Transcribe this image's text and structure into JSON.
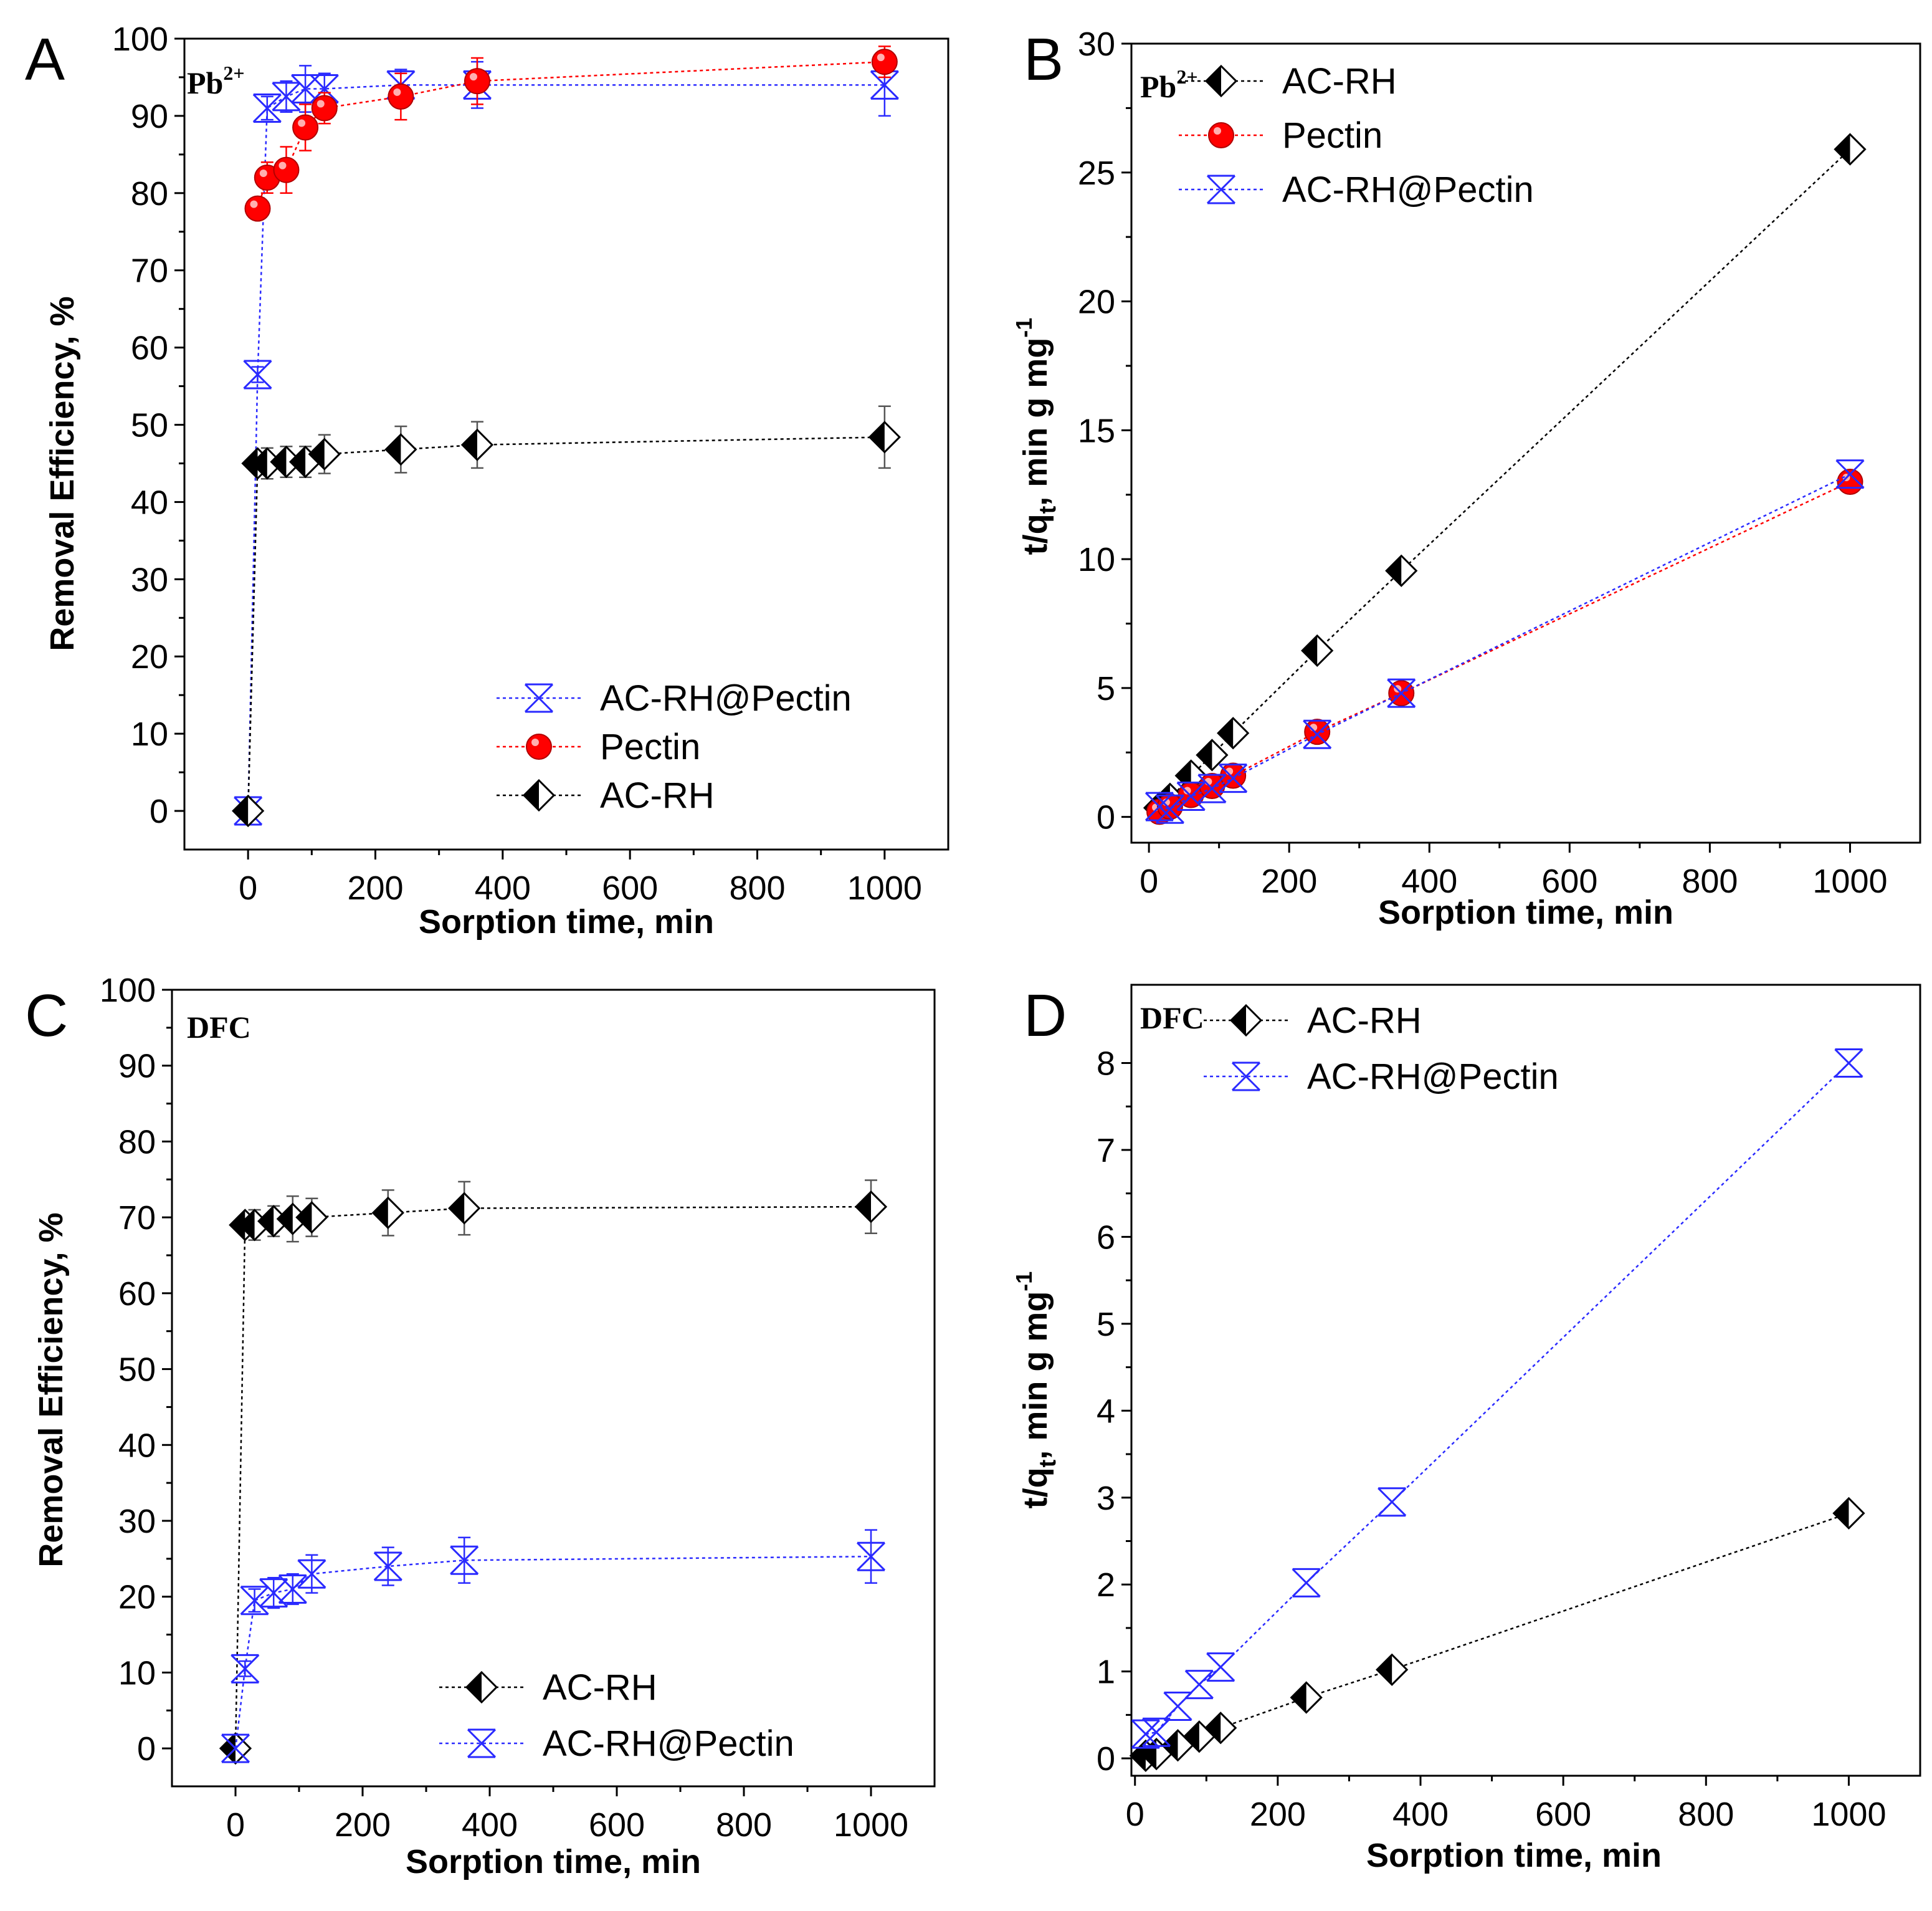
{
  "colors": {
    "AC-RH": "#000000",
    "Pectin": "#ff0000",
    "AC-RH@Pectin": "#2a2aff"
  },
  "chart_data": [
    {
      "id": "A",
      "letter": "A",
      "type": "line",
      "tag": "Pb",
      "tag_sup": "2+",
      "xlabel": "Sorption time, min",
      "ylabel": "Removal Efficiency, %",
      "xlim": [
        -100,
        1100
      ],
      "ylim": [
        -5,
        100
      ],
      "xticks": [
        0,
        200,
        400,
        600,
        800,
        1000
      ],
      "yticks": [
        0,
        10,
        20,
        30,
        40,
        50,
        60,
        70,
        80,
        90,
        100
      ],
      "legend_position": "bottom-right",
      "series": [
        {
          "name": "AC-RH@Pectin",
          "marker": "x-diamond",
          "color": "#2a2aff",
          "x": [
            0,
            15,
            30,
            60,
            90,
            120,
            240,
            360,
            1000
          ],
          "y": [
            0,
            56.5,
            91,
            92.5,
            93.5,
            93.5,
            94,
            94,
            94
          ],
          "err": [
            0,
            1,
            1.5,
            2,
            3,
            2,
            2,
            3,
            4
          ]
        },
        {
          "name": "Pectin",
          "marker": "circle",
          "color": "#ff0000",
          "x": [
            15,
            30,
            60,
            90,
            120,
            240,
            360,
            1000
          ],
          "y": [
            78,
            82,
            83,
            88.5,
            91,
            92.5,
            94.5,
            97
          ],
          "err": [
            1,
            2,
            3,
            3,
            2,
            3,
            3,
            2
          ]
        },
        {
          "name": "AC-RH",
          "marker": "half-diamond",
          "color": "#000000",
          "x": [
            0,
            15,
            30,
            60,
            90,
            120,
            240,
            360,
            1000
          ],
          "y": [
            0,
            45,
            45,
            45.2,
            45.2,
            46.2,
            46.8,
            47.4,
            48.4
          ],
          "err": [
            0,
            1,
            2,
            2,
            2,
            2.5,
            3,
            3,
            4
          ]
        }
      ]
    },
    {
      "id": "B",
      "letter": "B",
      "type": "line",
      "tag": "Pb",
      "tag_sup": "2+",
      "xlabel": "Sorption time, min",
      "ylabel": "t/q",
      "ylabel_sub": "t",
      "ylabel_rest": ", min g mg",
      "ylabel_sup": "-1",
      "xlim": [
        -25,
        1100
      ],
      "ylim": [
        -1,
        30
      ],
      "xticks": [
        0,
        200,
        400,
        600,
        800,
        1000
      ],
      "yticks": [
        0,
        5,
        10,
        15,
        20,
        25,
        30
      ],
      "legend_position": "top-left",
      "series": [
        {
          "name": "AC-RH",
          "marker": "half-diamond",
          "color": "#000000",
          "x": [
            15,
            30,
            60,
            90,
            120,
            240,
            360,
            1000
          ],
          "y": [
            0.35,
            0.7,
            1.6,
            2.4,
            3.25,
            6.45,
            9.55,
            25.9
          ]
        },
        {
          "name": "Pectin",
          "marker": "circle",
          "color": "#ff0000",
          "x": [
            15,
            30,
            60,
            90,
            120,
            240,
            360,
            1000
          ],
          "y": [
            0.2,
            0.4,
            0.85,
            1.2,
            1.6,
            3.3,
            4.8,
            13
          ]
        },
        {
          "name": "AC-RH@Pectin",
          "marker": "x-diamond",
          "color": "#2a2aff",
          "x": [
            15,
            30,
            60,
            90,
            120,
            240,
            360,
            1000
          ],
          "y": [
            0.4,
            0.3,
            0.8,
            1.1,
            1.5,
            3.2,
            4.8,
            13.3
          ]
        }
      ]
    },
    {
      "id": "C",
      "letter": "C",
      "type": "line",
      "tag": "DFC",
      "tag_sup": "",
      "xlabel": "Sorption time, min",
      "ylabel": "Removal Efficiency, %",
      "xlim": [
        -100,
        1100
      ],
      "ylim": [
        -5,
        100
      ],
      "xticks": [
        0,
        200,
        400,
        600,
        800,
        1000
      ],
      "yticks": [
        0,
        10,
        20,
        30,
        40,
        50,
        60,
        70,
        80,
        90,
        100
      ],
      "legend_position": "bottom-right",
      "series": [
        {
          "name": "AC-RH",
          "marker": "half-diamond",
          "color": "#000000",
          "x": [
            0,
            15,
            30,
            60,
            90,
            120,
            240,
            360,
            1000
          ],
          "y": [
            0,
            69,
            69,
            69.5,
            69.8,
            70,
            70.6,
            71.2,
            71.4
          ],
          "err": [
            0,
            1,
            2,
            2,
            3,
            2.5,
            3,
            3.5,
            3.5
          ]
        },
        {
          "name": "AC-RH@Pectin",
          "marker": "x-diamond",
          "color": "#2a2aff",
          "x": [
            0,
            15,
            30,
            60,
            90,
            120,
            240,
            360,
            1000
          ],
          "y": [
            0,
            10.5,
            19.5,
            20.5,
            21,
            23,
            24,
            24.8,
            25.3
          ],
          "err": [
            0,
            1,
            1.5,
            2,
            2,
            2.5,
            2.5,
            3,
            3.5
          ]
        }
      ]
    },
    {
      "id": "D",
      "letter": "D",
      "type": "line",
      "tag": "DFC",
      "tag_sup": "",
      "xlabel": "Sorption time, min",
      "ylabel": "t/q",
      "ylabel_sub": "t",
      "ylabel_rest": ", min g mg",
      "ylabel_sup": "-1",
      "xlim": [
        -5,
        1100
      ],
      "ylim": [
        -0.2,
        8.9
      ],
      "xticks": [
        0,
        200,
        400,
        600,
        800,
        1000
      ],
      "yticks": [
        0,
        1,
        2,
        3,
        4,
        5,
        6,
        7,
        8
      ],
      "legend_position": "top-left",
      "series": [
        {
          "name": "AC-RH",
          "marker": "half-diamond",
          "color": "#000000",
          "x": [
            15,
            30,
            60,
            90,
            120,
            240,
            360,
            1000
          ],
          "y": [
            0.03,
            0.05,
            0.15,
            0.25,
            0.35,
            0.7,
            1.02,
            2.82
          ]
        },
        {
          "name": "AC-RH@Pectin",
          "marker": "x-diamond",
          "color": "#2a2aff",
          "x": [
            15,
            30,
            60,
            90,
            120,
            240,
            360,
            1000
          ],
          "y": [
            0.28,
            0.3,
            0.6,
            0.85,
            1.05,
            2.02,
            2.95,
            8
          ]
        }
      ]
    }
  ]
}
